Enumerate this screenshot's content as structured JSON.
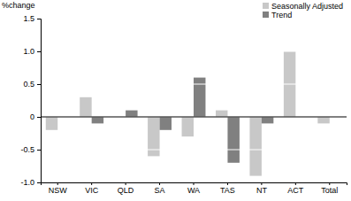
{
  "chart_data": {
    "type": "bar",
    "y_label": "%change",
    "categories": [
      "NSW",
      "VIC",
      "QLD",
      "SA",
      "WA",
      "TAS",
      "NT",
      "ACT",
      "Total"
    ],
    "series": [
      {
        "name": "Seasonally Adjusted",
        "color": "#c8c8c8",
        "values": [
          -0.2,
          0.3,
          0.0,
          -0.6,
          -0.3,
          0.1,
          -0.9,
          1.0,
          -0.1
        ]
      },
      {
        "name": "Trend",
        "color": "#808080",
        "values": [
          0.0,
          -0.1,
          0.1,
          -0.2,
          0.6,
          -0.7,
          -0.1,
          0.0,
          0.0
        ]
      }
    ],
    "ylim": [
      -1,
      1.5
    ],
    "yticks": [
      {
        "value": -1,
        "label": "-1.0"
      },
      -0.5,
      0,
      0.5,
      {
        "value": 1,
        "label": "1.0"
      },
      1.5
    ],
    "grid": true,
    "legend": "top-right"
  }
}
